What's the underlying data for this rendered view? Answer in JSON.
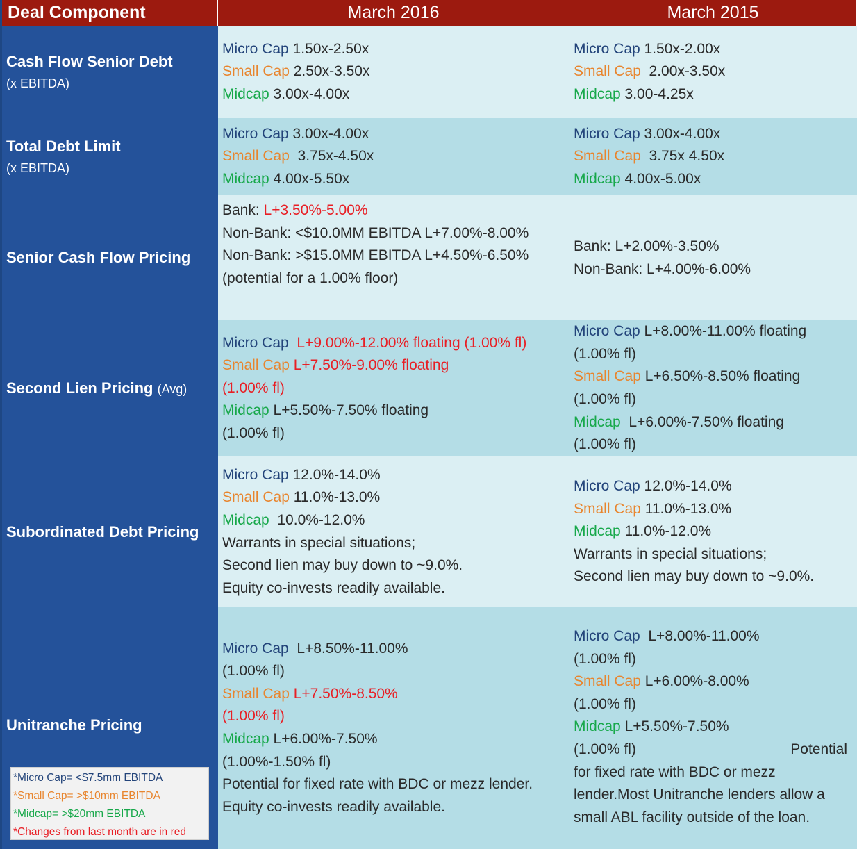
{
  "header": {
    "col0": "Deal Component",
    "col1": "March 2016",
    "col2": "March 2015"
  },
  "rows": {
    "cash_flow_senior_debt": {
      "label": "Cash Flow Senior Debt",
      "sublabel": "(x EBITDA)",
      "mar2016": [
        {
          "tier": "Micro Cap",
          "value": " 1.50x-2.50x"
        },
        {
          "tier": "Small Cap",
          "value": " 2.50x-3.50x"
        },
        {
          "tier": "Midcap",
          "value": " 3.00x-4.00x"
        }
      ],
      "mar2015": [
        {
          "tier": "Micro Cap",
          "value": " 1.50x-2.00x"
        },
        {
          "tier": "Small Cap",
          "value": "  2.00x-3.50x"
        },
        {
          "tier": "Midcap",
          "value": " 3.00-4.25x"
        }
      ]
    },
    "total_debt_limit": {
      "label": "Total Debt Limit",
      "sublabel": "(x EBITDA)",
      "mar2016": [
        {
          "tier": "Micro Cap",
          "value": " 3.00x-4.00x"
        },
        {
          "tier": "Small Cap",
          "value": "  3.75x-4.50x"
        },
        {
          "tier": "Midcap",
          "value": " 4.00x-5.50x"
        }
      ],
      "mar2015": [
        {
          "tier": "Micro Cap",
          "value": " 3.00x-4.00x"
        },
        {
          "tier": "Small Cap",
          "value": "  3.75x 4.50x"
        },
        {
          "tier": "Midcap",
          "value": " 4.00x-5.00x"
        }
      ]
    },
    "senior_cash_flow_pricing": {
      "label": "Senior Cash Flow Pricing",
      "mar2016": {
        "bank_prefix": "Bank: ",
        "bank_value": "L+3.50%-5.00%",
        "line2": "Non-Bank: <$10.0MM EBITDA L+7.00%-8.00%",
        "line3": "Non-Bank: >$15.0MM EBITDA L+4.50%-6.50%",
        "line4": "(potential for a 1.00% floor)"
      },
      "mar2015": {
        "line1": "Bank: L+2.00%-3.50%",
        "line2": "Non-Bank: L+4.00%-6.00%"
      }
    },
    "second_lien_pricing": {
      "label": "Second Lien Pricing",
      "label_suffix": "(Avg)",
      "mar2016": {
        "micro_tier": "Micro Cap",
        "micro_value": "L+9.00%-12.00% floating (1.00% fl)",
        "small_tier": "Small Cap",
        "small_value": "L+7.50%-9.00% floating",
        "small_floor": "(1.00% fl)",
        "mid_tier": "Midcap",
        "mid_value": " L+5.50%-7.50% floating",
        "mid_floor": "(1.00% fl)"
      },
      "mar2015": {
        "micro_tier": "Micro Cap",
        "micro_value": " L+8.00%-11.00% floating",
        "micro_floor": "(1.00% fl)",
        "small_tier": "Small Cap",
        "small_value": " L+6.50%-8.50% floating",
        "small_floor": "(1.00% fl)",
        "mid_tier": "Midcap",
        "mid_value": "  L+6.00%-7.50% floating",
        "mid_floor": "(1.00% fl)"
      }
    },
    "subordinated_debt_pricing": {
      "label": "Subordinated Debt Pricing",
      "mar2016": {
        "tiers": [
          {
            "tier": "Micro Cap",
            "value": " 12.0%-14.0%"
          },
          {
            "tier": "Small Cap",
            "value": " 11.0%-13.0%"
          },
          {
            "tier": "Midcap",
            "value": "  10.0%-12.0%"
          }
        ],
        "notes": [
          "Warrants in special situations;",
          "Second lien may buy down to ~9.0%.",
          "Equity co-invests readily available."
        ]
      },
      "mar2015": {
        "tiers": [
          {
            "tier": "Micro Cap",
            "value": " 12.0%-14.0%"
          },
          {
            "tier": "Small Cap",
            "value": " 11.0%-13.0%"
          },
          {
            "tier": "Midcap",
            "value": " 11.0%-12.0%"
          }
        ],
        "notes": [
          "Warrants in special situations;",
          "Second lien may buy down to ~9.0%."
        ]
      }
    },
    "unitranche_pricing": {
      "label": "Unitranche Pricing",
      "mar2016": {
        "micro_tier": "Micro Cap",
        "micro_value": "  L+8.50%-11.00%",
        "micro_floor": "(1.00% fl)",
        "small_tier": "Small Cap",
        "small_value": " L+7.50%-8.50%",
        "small_floor": "(1.00% fl)",
        "mid_tier": "Midcap",
        "mid_value": " L+6.00%-7.50%",
        "mid_floor": "(1.00%-1.50% fl)",
        "note1": "Potential for fixed rate with BDC or mezz lender.",
        "note2": "Equity co-invests readily available."
      },
      "mar2015": {
        "micro_tier": "Micro Cap",
        "micro_value": "  L+8.00%-11.00%",
        "micro_floor": "(1.00% fl)",
        "small_tier": "Small Cap",
        "small_value": " L+6.00%-8.00%",
        "small_floor": "(1.00% fl)",
        "mid_tier": "Midcap",
        "mid_value": " L+5.50%-7.50%",
        "mid_floor": "(1.00% fl)",
        "mid_potential": "Potential",
        "note": "for fixed rate with BDC or mezz lender.Most Unitranche lenders allow a small ABL facility outside of the loan."
      }
    }
  },
  "legend": {
    "micro": "*Micro Cap= <$7.5mm EBITDA",
    "small": "*Small Cap= >$10mm EBITDA",
    "mid": "*Midcap= >$20mm EBITDA",
    "changes": "*Changes from last month are in red"
  },
  "colors": {
    "header_bg": "#9c1a0f",
    "label_bg": "#24529a",
    "light_row": "#dbeff3",
    "mid_row": "#b4dde6",
    "micro_cap": "#23447a",
    "small_cap": "#e8852e",
    "midcap": "#17a84a",
    "change": "#e81f25"
  }
}
